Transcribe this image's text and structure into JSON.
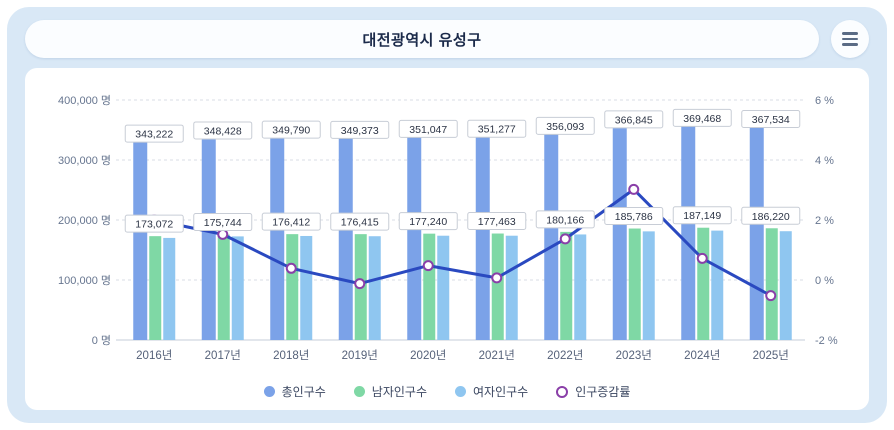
{
  "header": {
    "title": "대전광역시 유성구"
  },
  "chart_data": {
    "type": "bar",
    "subtype": "grouped-bars-with-line-overlay",
    "title": "대전광역시 유성구",
    "categories": [
      "2016년",
      "2017년",
      "2018년",
      "2019년",
      "2020년",
      "2021년",
      "2022년",
      "2023년",
      "2024년",
      "2025년"
    ],
    "series": [
      {
        "key": "total",
        "name": "총인구수",
        "type": "bar",
        "color": "#7BA2E8",
        "data_labels": true,
        "values": [
          343222,
          348428,
          349790,
          349373,
          351047,
          351277,
          356093,
          366845,
          369468,
          367534
        ]
      },
      {
        "key": "male",
        "name": "남자인구수",
        "type": "bar",
        "color": "#7FD8A5",
        "data_labels": true,
        "values": [
          173072,
          175744,
          176412,
          176415,
          177240,
          177463,
          180166,
          185786,
          187149,
          186220
        ]
      },
      {
        "key": "female",
        "name": "여자인구수",
        "type": "bar",
        "color": "#8FC6F0",
        "data_labels": false,
        "values": [
          170150,
          172684,
          173378,
          172958,
          173807,
          173814,
          175927,
          181059,
          182319,
          181314
        ]
      },
      {
        "key": "growth",
        "name": "인구증감률",
        "type": "line",
        "color": "#2A49C0",
        "marker_color": "#8A3FA8",
        "axis": "right",
        "data_labels": false,
        "values": [
          2.0,
          1.52,
          0.39,
          -0.12,
          0.48,
          0.07,
          1.37,
          3.02,
          0.72,
          -0.52
        ]
      }
    ],
    "left_axis": {
      "unit": "명",
      "min": 0,
      "max": 400000,
      "ticks": [
        "0 명",
        "100,000 명",
        "200,000 명",
        "300,000 명",
        "400,000 명"
      ]
    },
    "right_axis": {
      "unit": "%",
      "min": -2,
      "max": 6,
      "ticks": [
        "-2 %",
        "0 %",
        "2 %",
        "4 %",
        "6 %"
      ]
    },
    "grid": true,
    "legend_position": "bottom"
  },
  "colors": {
    "card_bg": "#D9E8F6",
    "panel_bg": "#FFFFFF",
    "title_text": "#1B2A4A",
    "grid_line": "#D8DDE6",
    "axis_text": "#66758F",
    "label_box_border": "#C8CDD6",
    "label_text": "#2B3344"
  }
}
